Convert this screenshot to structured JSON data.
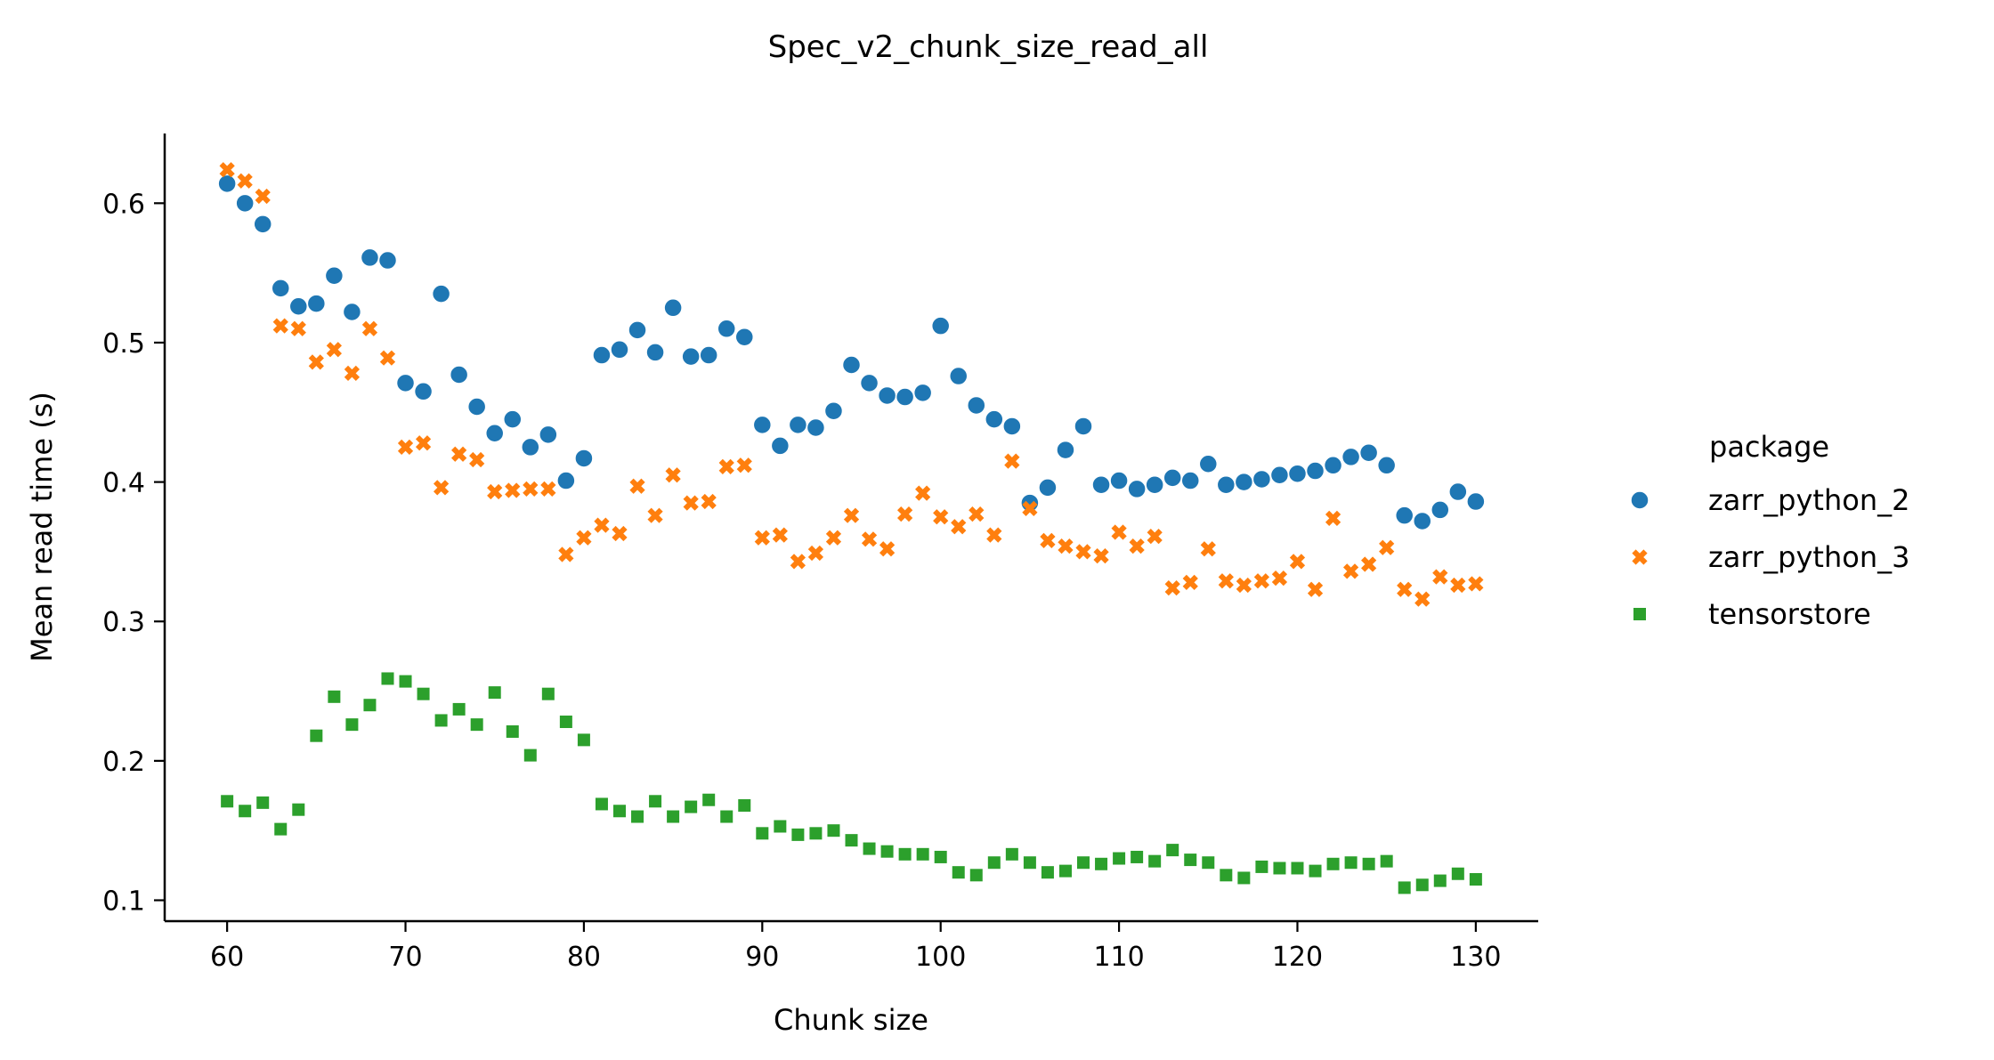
{
  "chart_data": {
    "type": "scatter",
    "title": "Spec_v2_chunk_size_read_all",
    "xlabel": "Chunk size",
    "ylabel": "Mean read time (s)",
    "xlim": [
      56.5,
      133.5
    ],
    "ylim": [
      0.085,
      0.65
    ],
    "x_ticks": [
      60,
      70,
      80,
      90,
      100,
      110,
      120,
      130
    ],
    "y_ticks": [
      0.1,
      0.2,
      0.3,
      0.4,
      0.5,
      0.6
    ],
    "x_tick_labels": [
      "60",
      "70",
      "80",
      "90",
      "100",
      "110",
      "120",
      "130"
    ],
    "y_tick_labels": [
      "0.1",
      "0.2",
      "0.3",
      "0.4",
      "0.5",
      "0.6"
    ],
    "grid": false,
    "legend": {
      "title": "package",
      "position": "right-outside"
    },
    "x": [
      60,
      61,
      62,
      63,
      64,
      65,
      66,
      67,
      68,
      69,
      70,
      71,
      72,
      73,
      74,
      75,
      76,
      77,
      78,
      79,
      80,
      81,
      82,
      83,
      84,
      85,
      86,
      87,
      88,
      89,
      90,
      91,
      92,
      93,
      94,
      95,
      96,
      97,
      98,
      99,
      100,
      101,
      102,
      103,
      104,
      105,
      106,
      107,
      108,
      109,
      110,
      111,
      112,
      113,
      114,
      115,
      116,
      117,
      118,
      119,
      120,
      121,
      122,
      123,
      124,
      125,
      126,
      127,
      128,
      129,
      130
    ],
    "series": [
      {
        "name": "zarr_python_2",
        "marker": "circle",
        "color": "#1f77b4",
        "values": [
          0.614,
          0.6,
          0.585,
          0.539,
          0.526,
          0.528,
          0.548,
          0.522,
          0.561,
          0.559,
          0.471,
          0.465,
          0.535,
          0.477,
          0.454,
          0.435,
          0.445,
          0.425,
          0.434,
          0.401,
          0.417,
          0.491,
          0.495,
          0.509,
          0.493,
          0.525,
          0.49,
          0.491,
          0.51,
          0.504,
          0.441,
          0.426,
          0.441,
          0.439,
          0.451,
          0.484,
          0.471,
          0.462,
          0.461,
          0.464,
          0.512,
          0.476,
          0.455,
          0.445,
          0.44,
          0.385,
          0.396,
          0.423,
          0.44,
          0.398,
          0.401,
          0.395,
          0.398,
          0.403,
          0.401,
          0.413,
          0.398,
          0.4,
          0.402,
          0.405,
          0.406,
          0.408,
          0.412,
          0.418,
          0.421,
          0.412,
          0.376,
          0.372,
          0.38,
          0.393,
          0.386
        ]
      },
      {
        "name": "zarr_python_3",
        "marker": "x",
        "color": "#ff7f0e",
        "values": [
          0.624,
          0.616,
          0.605,
          0.512,
          0.51,
          0.486,
          0.495,
          0.478,
          0.51,
          0.489,
          0.425,
          0.428,
          0.396,
          0.42,
          0.416,
          0.393,
          0.394,
          0.395,
          0.395,
          0.348,
          0.36,
          0.369,
          0.363,
          0.397,
          0.376,
          0.405,
          0.385,
          0.386,
          0.411,
          0.412,
          0.36,
          0.362,
          0.343,
          0.349,
          0.36,
          0.376,
          0.359,
          0.352,
          0.377,
          0.392,
          0.375,
          0.368,
          0.377,
          0.362,
          0.415,
          0.381,
          0.358,
          0.354,
          0.35,
          0.347,
          0.364,
          0.354,
          0.361,
          0.324,
          0.328,
          0.352,
          0.329,
          0.326,
          0.329,
          0.331,
          0.343,
          0.323,
          0.374,
          0.336,
          0.341,
          0.353,
          0.323,
          0.316,
          0.332,
          0.326,
          0.327
        ]
      },
      {
        "name": "tensorstore",
        "marker": "square",
        "color": "#2ca02c",
        "values": [
          0.171,
          0.164,
          0.17,
          0.151,
          0.165,
          0.218,
          0.246,
          0.226,
          0.24,
          0.259,
          0.257,
          0.248,
          0.229,
          0.237,
          0.226,
          0.249,
          0.221,
          0.204,
          0.248,
          0.228,
          0.215,
          0.169,
          0.164,
          0.16,
          0.171,
          0.16,
          0.167,
          0.172,
          0.16,
          0.168,
          0.148,
          0.153,
          0.147,
          0.148,
          0.15,
          0.143,
          0.137,
          0.135,
          0.133,
          0.133,
          0.131,
          0.12,
          0.118,
          0.127,
          0.133,
          0.127,
          0.12,
          0.121,
          0.127,
          0.126,
          0.13,
          0.131,
          0.128,
          0.136,
          0.129,
          0.127,
          0.118,
          0.116,
          0.124,
          0.123,
          0.123,
          0.121,
          0.126,
          0.127,
          0.126,
          0.128,
          0.109,
          0.111,
          0.114,
          0.119,
          0.115
        ]
      }
    ]
  }
}
